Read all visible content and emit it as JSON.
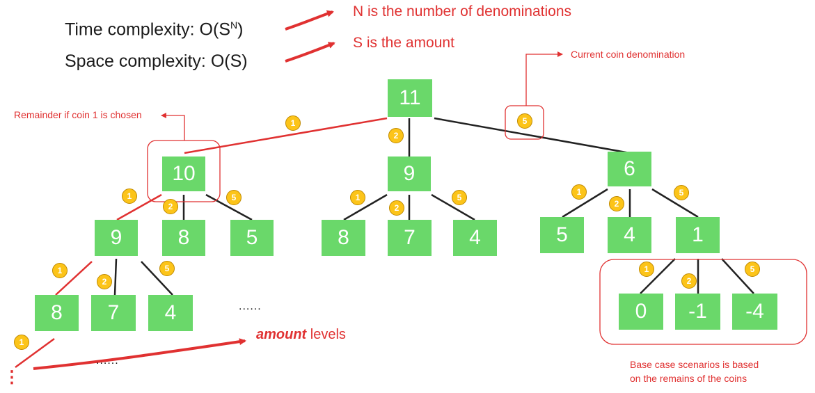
{
  "complexity": {
    "time_prefix": "Time complexity: O(S",
    "time_sup": "N",
    "time_suffix": ")",
    "space": "Space complexity: O(S)"
  },
  "notes": {
    "n_def": "N is the number of denominations",
    "s_def": "S is the amount",
    "current_coin": "Current coin denomination",
    "remainder": "Remainder if coin 1 is chosen",
    "amount_emph": "amount",
    "amount_rest": " levels",
    "base_case_line1": "Base case scenarios is based",
    "base_case_line2": "on the remains of the coins"
  },
  "tree": {
    "root": "11",
    "level1": [
      "10",
      "9",
      "6"
    ],
    "level2_a": [
      "9",
      "8",
      "5"
    ],
    "level2_b": [
      "8",
      "7",
      "4"
    ],
    "level2_c": [
      "5",
      "4",
      "1"
    ],
    "level3_a": [
      "8",
      "7",
      "4"
    ],
    "level3_c": [
      "0",
      "-1",
      "-4"
    ],
    "ellipsis": "......",
    "vertical_dots": "⋮"
  },
  "coins": [
    "1",
    "2",
    "5"
  ],
  "colors": {
    "node": "#6ad86a",
    "accent": "#e03131",
    "coin": "#fcc419"
  }
}
